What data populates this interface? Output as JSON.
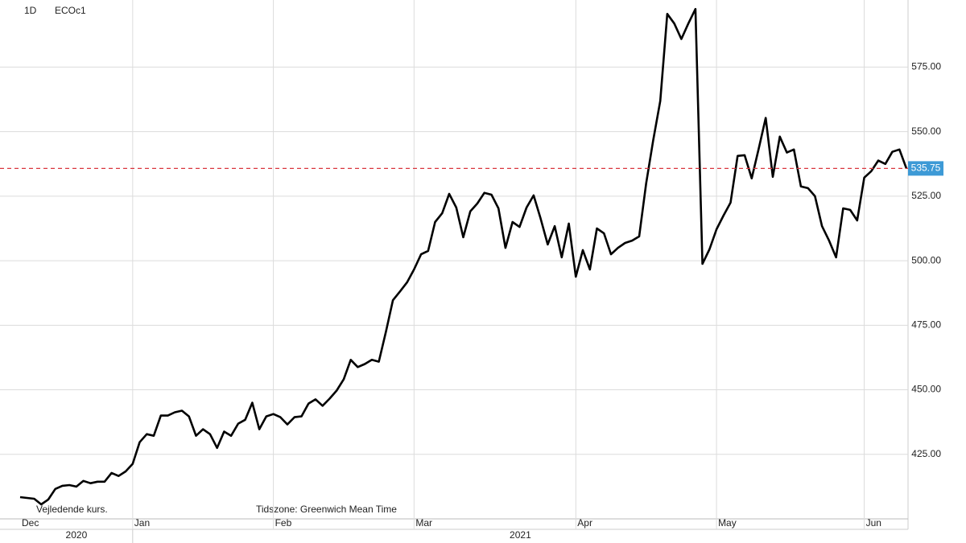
{
  "chart_data": {
    "type": "line",
    "interval": "1D",
    "symbol": "ECOc1",
    "note": "Vejledende kurs.",
    "timezone": "Tidszone: Greenwich Mean Time",
    "series": [
      {
        "name": "ECOc1",
        "color": "#000000",
        "values": [
          408.4,
          408.1,
          407.8,
          405.6,
          407.5,
          411.6,
          412.8,
          413.1,
          412.5,
          414.7,
          413.8,
          414.4,
          414.4,
          417.8,
          416.6,
          418.4,
          421.3,
          429.7,
          432.8,
          432.2,
          440,
          440,
          441.3,
          441.9,
          439.7,
          432.2,
          434.7,
          432.8,
          427.5,
          433.8,
          432.2,
          436.9,
          438.4,
          445,
          434.7,
          439.7,
          440.6,
          439.4,
          436.6,
          439.4,
          439.7,
          444.7,
          446.3,
          443.8,
          446.6,
          449.7,
          454.1,
          461.6,
          458.8,
          460,
          461.6,
          460.9,
          472.5,
          484.7,
          488.1,
          491.6,
          496.6,
          502.5,
          503.8,
          515,
          518.4,
          525.9,
          520.6,
          509.1,
          519.1,
          522.2,
          526.3,
          525.6,
          520.3,
          505,
          515,
          513.1,
          520.6,
          525.3,
          516.3,
          506.3,
          513.4,
          501.3,
          514.4,
          493.8,
          504.1,
          496.6,
          512.5,
          510.6,
          502.5,
          505,
          506.9,
          507.8,
          509.4,
          530,
          546.6,
          561.9,
          595.6,
          591.9,
          585.9,
          591.9,
          597.5,
          498.8,
          504.4,
          512.2,
          517.5,
          522.5,
          540.6,
          540.9,
          531.9,
          543.4,
          555.3,
          532.5,
          548.1,
          541.9,
          543.1,
          528.8,
          528.1,
          525,
          513.4,
          507.8,
          501.3,
          520.3,
          519.7,
          515.6,
          532.2,
          534.7,
          538.8,
          537.5,
          542.2,
          543.1,
          535.75
        ],
        "value_labels": {
          "126": "535.75"
        }
      }
    ],
    "last_value_line_color": "#d9363e",
    "last_value_label_color": "#3d9ad6",
    "xlim": [
      0,
      126
    ],
    "xticks": [
      {
        "value": 0,
        "label": "Dec"
      },
      {
        "value": 16,
        "label": "Jan"
      },
      {
        "value": 36,
        "label": "Feb"
      },
      {
        "value": 56,
        "label": "Mar"
      },
      {
        "value": 79,
        "label": "Apr"
      },
      {
        "value": 99,
        "label": "May"
      },
      {
        "value": 120,
        "label": "Jun"
      }
    ],
    "years": [
      {
        "value": 0,
        "label": "2020"
      },
      {
        "value": 16,
        "label": "2021"
      }
    ],
    "ylim": [
      400,
      601
    ],
    "yticks": [
      {
        "value": 425,
        "label": "425.00"
      },
      {
        "value": 450,
        "label": "450.00"
      },
      {
        "value": 475,
        "label": "475.00"
      },
      {
        "value": 500,
        "label": "500.00"
      },
      {
        "value": 525,
        "label": "525.00"
      },
      {
        "value": 550,
        "label": "550.00"
      },
      {
        "value": 575,
        "label": "575.00"
      }
    ],
    "grid": true
  }
}
